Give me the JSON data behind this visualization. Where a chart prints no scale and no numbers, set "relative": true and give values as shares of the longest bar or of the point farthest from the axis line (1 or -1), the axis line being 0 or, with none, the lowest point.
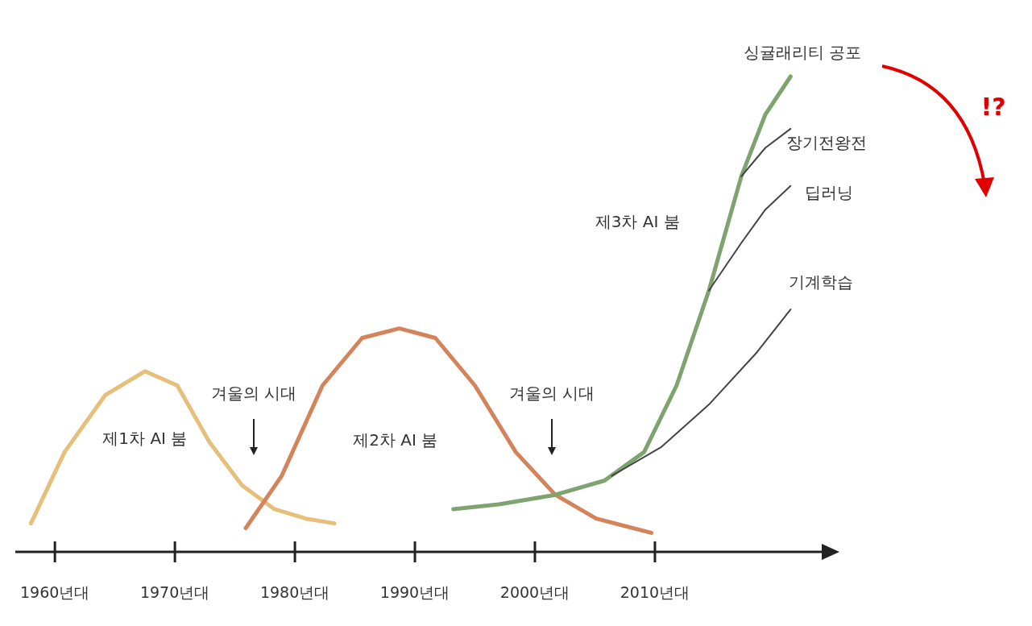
{
  "chart_data": {
    "type": "line",
    "relative": true,
    "xlim": [
      1956.7,
      2023.9
    ],
    "xticks": [
      {
        "value": 1960,
        "label": "1960년대"
      },
      {
        "value": 1970,
        "label": "1970년대"
      },
      {
        "value": 1980,
        "label": "1980년대"
      },
      {
        "value": 1990,
        "label": "1990년대"
      },
      {
        "value": 2000,
        "label": "2000년대"
      },
      {
        "value": 2010,
        "label": "2010년대"
      }
    ],
    "series": [
      {
        "name": "제1차 AI 붐",
        "color": "#e6c07b",
        "x": [
          1958.0,
          1960.8,
          1964.2,
          1967.5,
          1970.2,
          1972.9,
          1975.6,
          1978.3,
          1980.9,
          1983.3
        ],
        "values": [
          0.06,
          0.21,
          0.33,
          0.38,
          0.35,
          0.23,
          0.14,
          0.09,
          0.07,
          0.06
        ]
      },
      {
        "name": "제2차 AI 붐",
        "color": "#d4845a",
        "x": [
          1975.9,
          1978.9,
          1982.3,
          1985.6,
          1988.7,
          1991.7,
          1995.0,
          1998.4,
          2001.7,
          2005.1,
          2009.7
        ],
        "values": [
          0.05,
          0.16,
          0.35,
          0.45,
          0.47,
          0.45,
          0.35,
          0.21,
          0.12,
          0.07,
          0.04
        ]
      },
      {
        "name": "제3차 AI 붐",
        "color": "#7fa36e",
        "x": [
          1993.2,
          1997.0,
          2001.7,
          2005.8,
          2009.1,
          2011.8,
          2014.5,
          2017.2,
          2019.2,
          2021.3
        ],
        "values": [
          0.09,
          0.1,
          0.12,
          0.15,
          0.21,
          0.35,
          0.55,
          0.79,
          0.92,
          1
        ]
      },
      {
        "name": "기계학습",
        "color": "#444444",
        "x": [
          2006.4,
          2010.5,
          2014.5,
          2018.5,
          2021.3
        ],
        "values": [
          0.16,
          0.22,
          0.31,
          0.42,
          0.51
        ]
      },
      {
        "name": "딥러닝",
        "color": "#444444",
        "x": [
          2014.5,
          2017.2,
          2019.2,
          2021.3
        ],
        "values": [
          0.55,
          0.65,
          0.72,
          0.77
        ]
      },
      {
        "name": "장기전왕전",
        "color": "#444444",
        "x": [
          2017.2,
          2019.2,
          2021.3
        ],
        "values": [
          0.79,
          0.85,
          0.89
        ]
      }
    ],
    "annotations": [
      "겨울의 시대",
      "겨울의 시대",
      {
        "text": "싱귤래리티 공포",
        "x": 2021.3,
        "y": 1
      },
      "!?"
    ]
  }
}
